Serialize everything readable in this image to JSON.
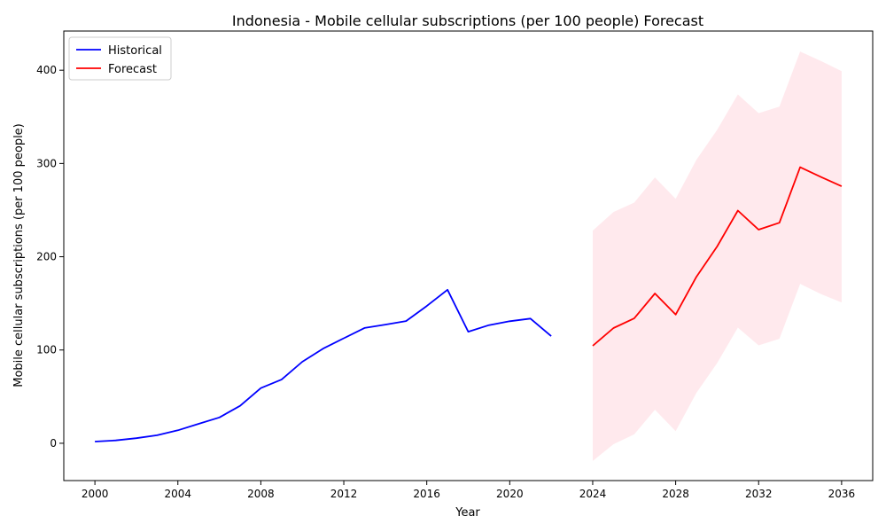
{
  "chart_data": {
    "type": "line",
    "title": "Indonesia - Mobile cellular subscriptions (per 100 people) Forecast",
    "xlabel": "Year",
    "ylabel": "Mobile cellular subscriptions (per 100 people)",
    "xlim": [
      1998.5,
      2037.5
    ],
    "ylim": [
      -40,
      442
    ],
    "x_ticks": [
      "2000",
      "2004",
      "2008",
      "2012",
      "2016",
      "2020",
      "2024",
      "2028",
      "2032",
      "2036"
    ],
    "y_ticks": [
      "0",
      "100",
      "200",
      "300",
      "400"
    ],
    "grid": false,
    "legend_position": "top-left",
    "series": [
      {
        "name": "Historical",
        "color": "#0000ff",
        "x": [
          2000,
          2001,
          2002,
          2003,
          2004,
          2005,
          2006,
          2007,
          2008,
          2009,
          2010,
          2011,
          2012,
          2013,
          2014,
          2015,
          2016,
          2017,
          2018,
          2019,
          2020,
          2021,
          2022
        ],
        "y": [
          1.8,
          3.1,
          5.4,
          8.6,
          13.9,
          20.8,
          27.7,
          40.1,
          59.2,
          68.3,
          87.4,
          101.5,
          112.6,
          123.6,
          127.2,
          131.0,
          147.2,
          164.6,
          119.6,
          126.7,
          130.8,
          133.7,
          114.9
        ]
      },
      {
        "name": "Forecast",
        "color": "#ff0000",
        "x": [
          2024,
          2025,
          2026,
          2027,
          2028,
          2029,
          2030,
          2031,
          2032,
          2033,
          2034,
          2035,
          2036
        ],
        "y": [
          104.5,
          123.5,
          133.9,
          160.6,
          138.0,
          178.5,
          211.0,
          249.5,
          229.0,
          236.5,
          296.0,
          285.5,
          275.5
        ],
        "band_lower": [
          -19,
          -1,
          9.5,
          36,
          13,
          54,
          86,
          124,
          105,
          112,
          171,
          160,
          151
        ],
        "band_upper": [
          228,
          248,
          258,
          285,
          262,
          304,
          336,
          374,
          354,
          361,
          420,
          410,
          399
        ],
        "band_color": "#ffc0cb"
      }
    ]
  }
}
